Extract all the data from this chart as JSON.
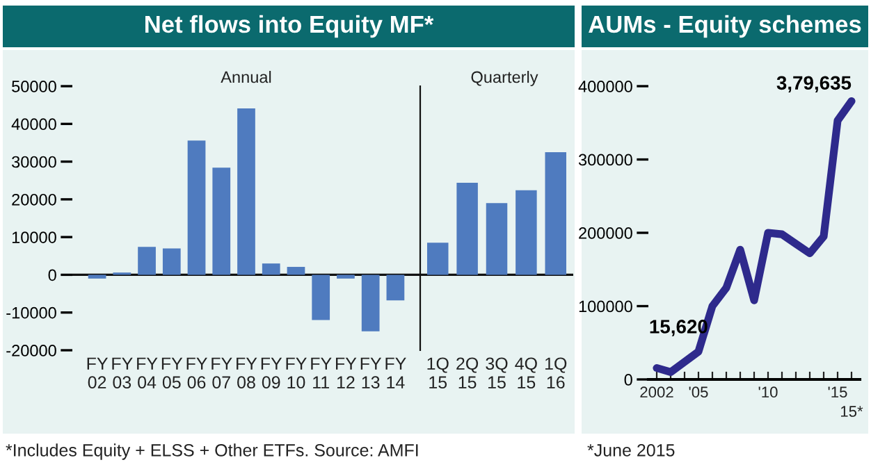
{
  "chart_data": [
    {
      "type": "bar",
      "title": "Net flows into Equity MF*",
      "categories": [
        "FY\n02",
        "FY\n03",
        "FY\n04",
        "FY\n05",
        "FY\n06",
        "FY\n07",
        "FY\n08",
        "FY\n09",
        "FY\n10",
        "FY\n11",
        "FY\n12",
        "FY\n13",
        "FY\n14"
      ],
      "values": [
        -1000,
        600,
        7400,
        7000,
        35600,
        28400,
        44100,
        3000,
        2100,
        -12000,
        -1000,
        -15000,
        -6800
      ],
      "color": "#4f7bbf",
      "ref_lines": [
        {
          "axis": "y",
          "value": 0
        }
      ],
      "ylim": [
        -20000,
        50000
      ],
      "yticks": [
        -20000,
        -10000,
        0,
        10000,
        20000,
        30000,
        40000,
        50000
      ],
      "grid": false,
      "annotations": [
        "Annual",
        "*Includes Equity + ELSS + Other ETFs. Source: AMFI"
      ]
    },
    {
      "type": "bar",
      "categories": [
        "1Q\n15",
        "2Q\n15",
        "3Q\n15",
        "4Q\n15",
        "1Q\n16"
      ],
      "values": [
        8500,
        24400,
        19000,
        22400,
        32500
      ],
      "color": "#4f7bbf",
      "ref_lines": [
        {
          "axis": "y",
          "value": 0
        }
      ],
      "ylim": [
        -20000,
        50000
      ],
      "tick_labels": "x",
      "grid": false,
      "annotations": [
        "Quarterly"
      ]
    },
    {
      "type": "line",
      "title": "AUMs - Equity schemes",
      "categories": [
        "2002",
        null,
        null,
        "'05",
        null,
        null,
        null,
        null,
        "'10",
        null,
        null,
        null,
        null,
        "'15",
        "15*"
      ],
      "values": [
        15620,
        10000,
        24000,
        38000,
        100000,
        125000,
        177000,
        108000,
        200000,
        198000,
        185000,
        172000,
        195000,
        353000,
        379635
      ],
      "value_labels": [
        "15,620",
        null,
        null,
        null,
        null,
        null,
        null,
        null,
        null,
        null,
        null,
        null,
        null,
        null,
        "3,79,635"
      ],
      "color": "#2e2a8c",
      "marker": "none",
      "line_style": "solid",
      "ylim": [
        0,
        400000
      ],
      "yticks": [
        0,
        100000,
        200000,
        300000,
        400000
      ],
      "grid": false,
      "annotations": [
        "*June 2015"
      ]
    }
  ]
}
